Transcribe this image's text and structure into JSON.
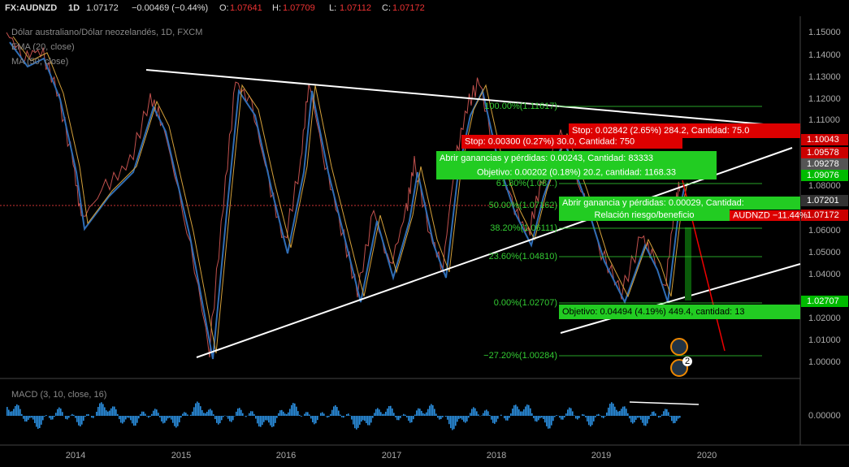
{
  "header": {
    "symbol": "FX:AUDNZD",
    "interval": "1D",
    "last": "1.07172",
    "change": "−0.00469 (−0.44%)",
    "ohlc": [
      {
        "label": "O:",
        "value": "1.07641"
      },
      {
        "label": "H:",
        "value": "1.07709"
      },
      {
        "label": "L:",
        "value": "1.07112"
      },
      {
        "label": "C:",
        "value": "1.07172"
      }
    ]
  },
  "legend": [
    "Dólar australiano/Dólar neozelandés, 1D, FXCM",
    "EMA (20, close)",
    "MA (50, close)"
  ],
  "price_axis": [
    "1.15000",
    "1.14000",
    "1.13000",
    "1.12000",
    "1.11000",
    "1.08000",
    "1.06000",
    "1.05000",
    "1.04000",
    "1.02000",
    "1.01000",
    "1.00000"
  ],
  "price_tags": [
    "1.10043",
    "1.09578",
    "1.09278",
    "1.09076",
    "1.07201",
    "1.07172",
    "1.02707"
  ],
  "fib_levels": [
    "100.00%(1.11617)",
    "61.80%(1.08...)",
    "50.00%(1.07162)",
    "38.20%(1.06111)",
    "23.60%(1.04810)",
    "0.00%(1.02707)",
    "−27.20%(1.00284)"
  ],
  "positions": {
    "stop_1": "Stop: 0.02842 (2.65%) 284.2, Cantidad: 75.0",
    "stop_2": "Stop: 0.00300 (0.27%) 30.0, Cantidad: 750",
    "open_1": "Abrir ganancias y pérdidas: 0.00243, Cantidad: 83333",
    "target_1": "Objetivo: 0.00202 (0.18%) 20.2, cantidad: 1168.33",
    "open_2": "Abrir ganancia y pérdidas: 0.00029, Cantidad:",
    "ratio": "Relación riesgo/beneficio",
    "target_2": "Objetivo: 0.04494 (4.19%) 449.4, cantidad: 13",
    "change_tag": "AUDNZD −11.44%"
  },
  "event_badge": "2",
  "macd": {
    "label": "MACD (3, 10, close, 16)",
    "axis": "0.00000"
  },
  "time_axis": [
    "2014",
    "2015",
    "2016",
    "2017",
    "2018",
    "2019",
    "2020"
  ]
}
